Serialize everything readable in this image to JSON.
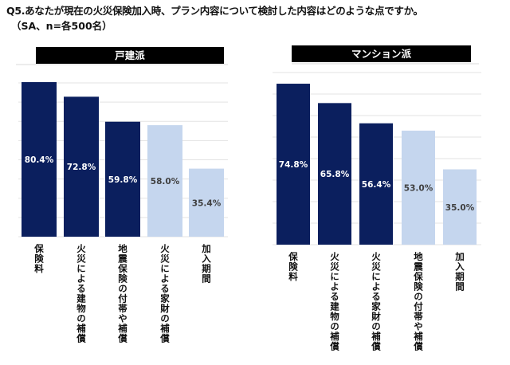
{
  "question": "Q5.あなたが現在の火災保険加入時、プラン内容について検討した内容はどのような点ですか。",
  "sample_note": "（SA、n=各500名）",
  "colors": {
    "highlight": "#0b1f5e",
    "normal": "#c5d6ee",
    "grid": "#e3e3e3"
  },
  "chart_data": [
    {
      "type": "bar",
      "title": "戸建派",
      "categories": [
        "保険料",
        "火災による建物の補償",
        "地震保険の付帯や補償",
        "火災による家財の補償",
        "加入期間"
      ],
      "values": [
        80.4,
        72.8,
        59.8,
        58.0,
        35.4
      ],
      "labels": [
        "80.4%",
        "72.8%",
        "59.8%",
        "58.0%",
        "35.4%"
      ],
      "highlighted": [
        true,
        true,
        true,
        false,
        false
      ],
      "ylim": [
        0,
        80
      ],
      "grid": true
    },
    {
      "type": "bar",
      "title": "マンション派",
      "categories": [
        "保険料",
        "火災による建物の補償",
        "火災による家財の補償",
        "地震保険の付帯や補償",
        "加入期間"
      ],
      "values": [
        74.8,
        65.8,
        56.4,
        53.0,
        35.0
      ],
      "labels": [
        "74.8%",
        "65.8%",
        "56.4%",
        "53.0%",
        "35.0%"
      ],
      "highlighted": [
        true,
        true,
        true,
        false,
        false
      ],
      "ylim": [
        0,
        80
      ],
      "grid": true
    }
  ]
}
